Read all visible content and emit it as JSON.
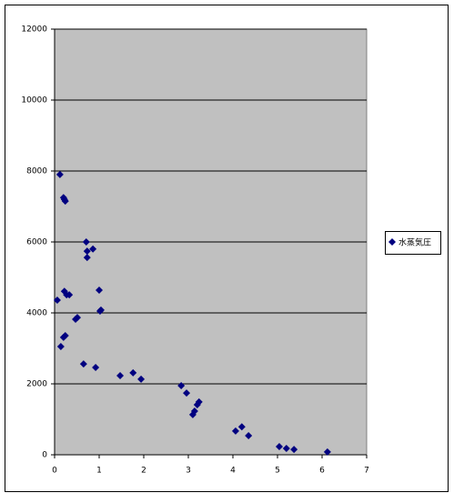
{
  "chart_data": {
    "type": "scatter",
    "series": [
      {
        "name": "水蒸気圧",
        "color": "#000080",
        "x": [
          0.12,
          0.2,
          0.24,
          0.22,
          0.71,
          0.73,
          0.86,
          0.73,
          1.0,
          0.06,
          0.22,
          0.27,
          0.33,
          0.51,
          0.47,
          1.04,
          1.02,
          0.2,
          0.24,
          0.14,
          0.65,
          0.92,
          1.47,
          1.76,
          1.94,
          2.84,
          2.96,
          3.1,
          3.14,
          3.2,
          3.24,
          4.06,
          4.2,
          4.35,
          5.04,
          5.2,
          5.37,
          6.12
        ],
        "values": [
          7900,
          7250,
          7150,
          7200,
          6000,
          5740,
          5800,
          5560,
          4640,
          4360,
          4610,
          4510,
          4510,
          3870,
          3820,
          4080,
          4050,
          3310,
          3360,
          3050,
          2560,
          2460,
          2230,
          2310,
          2130,
          1950,
          1740,
          1130,
          1230,
          1410,
          1490,
          670,
          790,
          540,
          230,
          180,
          150,
          80
        ]
      }
    ],
    "xlim": [
      0,
      7
    ],
    "xticks": [
      0,
      1,
      2,
      3,
      4,
      5,
      6,
      7
    ],
    "ylim": [
      0,
      12000
    ],
    "yticks": [
      0,
      2000,
      4000,
      6000,
      8000,
      10000,
      12000
    ],
    "grid": true,
    "legend": "right",
    "plot_background": "#c0c0c0"
  }
}
